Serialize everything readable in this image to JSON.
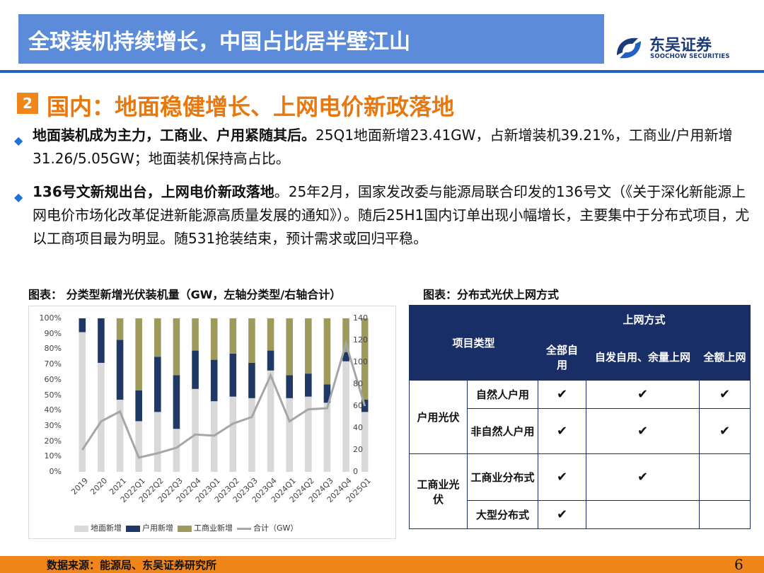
{
  "header": {
    "title": "全球装机持续增长，中国占比居半壁江山",
    "brand": "东吴证券",
    "brand_en": "SOOCHOW SECURITIES"
  },
  "section": {
    "number": "2",
    "title": "国内：地面稳健增长、上网电价新政落地"
  },
  "bullets": [
    {
      "bold": "地面装机成为主力，工商业、户用紧随其后。",
      "text": "25Q1地面新增23.41GW，占新增装机39.21%，工商业/户用新增31.26/5.05GW；地面装机保持高占比。"
    },
    {
      "bold": "136号文新规出台，上网电价新政落地",
      "text": "。25年2月，国家发改委与能源局联合印发的136号文（《关于深化新能源上网电价市场化改革促进新能源高质量发展的通知》）。随后25H1国内订单出现小幅增长，主要集中于分布式项目，尤以工商项目最为明显。随531抢装结束，预计需求或回归平稳。"
    }
  ],
  "captions": {
    "chart": "图表： 分类型新增光伏装机量（GW，左轴分类型/右轴合计）",
    "table": "图表：分布式光伏上网方式"
  },
  "colors": {
    "ground": "#D9D9D9",
    "household": "#1F3864",
    "commercial": "#9E9A5E",
    "total": "#A6A6A6"
  },
  "chart_data": {
    "type": "bar",
    "stacked": true,
    "categories": [
      "2019",
      "2020",
      "2021",
      "2022Q1",
      "2022Q2",
      "2022Q3",
      "2022Q4",
      "2023Q1",
      "2023Q2",
      "2023Q3",
      "2023Q4",
      "2024Q1",
      "2024Q2",
      "2024Q3",
      "2024Q4",
      "2025Q1"
    ],
    "series": [
      {
        "name": "地面新增",
        "axis": "left",
        "values": [
          91,
          71,
          47,
          33,
          39,
          28,
          54,
          46,
          49,
          48,
          66,
          48,
          49,
          45,
          72,
          39
        ]
      },
      {
        "name": "户用新增",
        "axis": "left",
        "values": [
          9,
          29,
          39,
          20,
          36,
          35,
          25,
          27,
          28,
          23,
          13,
          15,
          15,
          12,
          6,
          8
        ]
      },
      {
        "name": "工商业新增",
        "axis": "left",
        "values": [
          0,
          0,
          14,
          47,
          25,
          37,
          21,
          27,
          23,
          29,
          21,
          37,
          36,
          43,
          22,
          53
        ]
      },
      {
        "name": "合计（GW）",
        "axis": "right",
        "type": "line",
        "values": [
          20,
          46,
          55,
          13,
          17,
          22,
          34,
          33,
          44,
          50,
          88,
          46,
          57,
          58,
          117,
          60
        ]
      }
    ],
    "y_left": {
      "ticks": [
        "0%",
        "10%",
        "20%",
        "30%",
        "40%",
        "50%",
        "60%",
        "70%",
        "80%",
        "90%",
        "100%"
      ],
      "range": [
        0,
        100
      ]
    },
    "y_right": {
      "ticks": [
        "0",
        "20",
        "40",
        "60",
        "80",
        "100",
        "120",
        "140"
      ],
      "range": [
        0,
        140
      ]
    },
    "grid": false,
    "legend": "bottom"
  },
  "table": {
    "header": {
      "project_type": "项目类型",
      "grid_mode": "上网方式",
      "full_self": "全部自用",
      "surplus": "自发自用、余量上网",
      "full_grid": "全额上网"
    },
    "groups": [
      {
        "name": "户用光伏",
        "rows": [
          {
            "type": "自然人户用",
            "full_self": "✔",
            "surplus": "✔",
            "full_grid": "✔"
          },
          {
            "type": "非自然人户用",
            "full_self": "✔",
            "surplus": "✔",
            "full_grid": "✔"
          }
        ]
      },
      {
        "name": "工商业光伏",
        "rows": [
          {
            "type": "工商业分布式",
            "full_self": "✔",
            "surplus": "✔",
            "full_grid": ""
          },
          {
            "type": "大型分布式",
            "full_self": "✔",
            "surplus": "",
            "full_grid": ""
          }
        ]
      }
    ]
  },
  "footer": {
    "source": "数据来源：能源局、东吴证券研究所",
    "page": "6"
  }
}
